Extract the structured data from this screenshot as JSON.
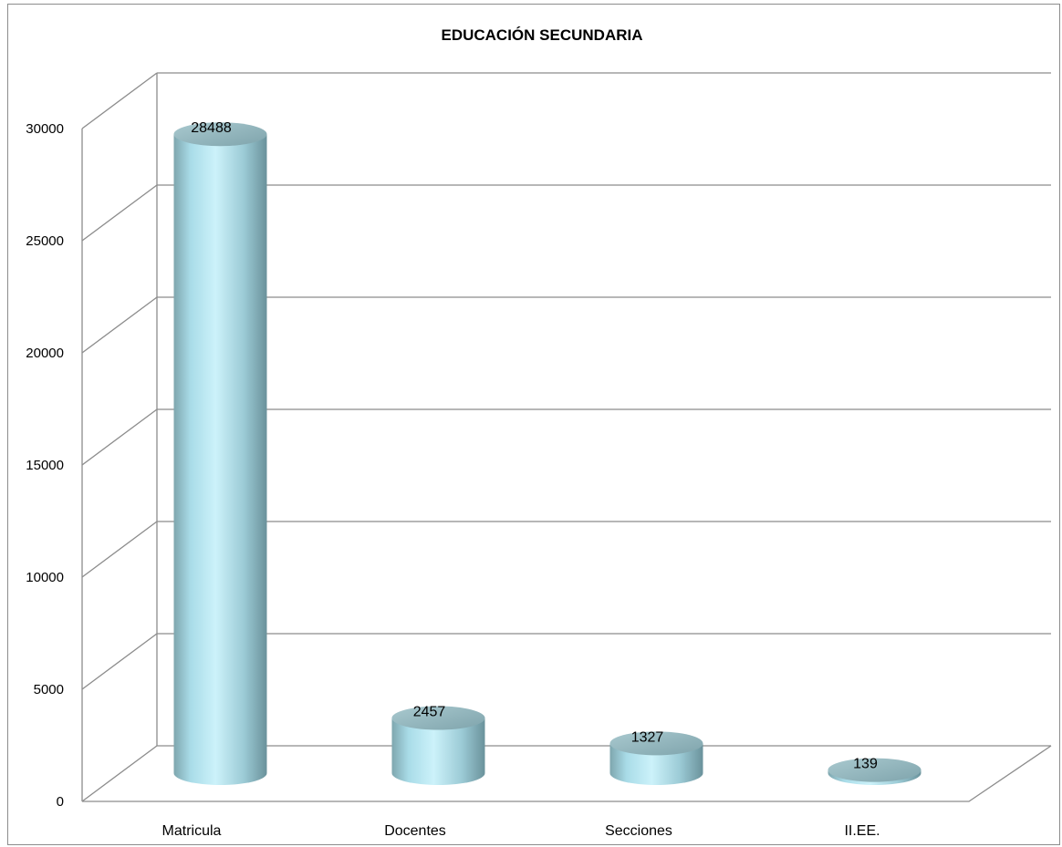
{
  "chart_data": {
    "type": "bar",
    "style": "3d-cylinder",
    "title": "EDUCACIÓN SECUNDARIA",
    "xlabel": "",
    "ylabel": "",
    "categories": [
      "Matricula",
      "Docentes",
      "Secciones",
      "II.EE."
    ],
    "values": [
      28488,
      2457,
      1327,
      139
    ],
    "data_labels": [
      "28488",
      "2457",
      "1327",
      "139"
    ],
    "ylim": [
      0,
      30000
    ],
    "yticks": [
      0,
      5000,
      10000,
      15000,
      20000,
      25000,
      30000
    ],
    "ytick_labels": [
      "0",
      "5000",
      "10000",
      "15000",
      "20000",
      "25000",
      "30000"
    ],
    "grid": true,
    "legend": "none",
    "colors": {
      "bar_light": "#c8f0f8",
      "bar_mid": "#9fd3df",
      "bar_dark": "#6f9aa4",
      "bar_top": "#8fb4bc",
      "grid": "#8c8c8c"
    }
  }
}
